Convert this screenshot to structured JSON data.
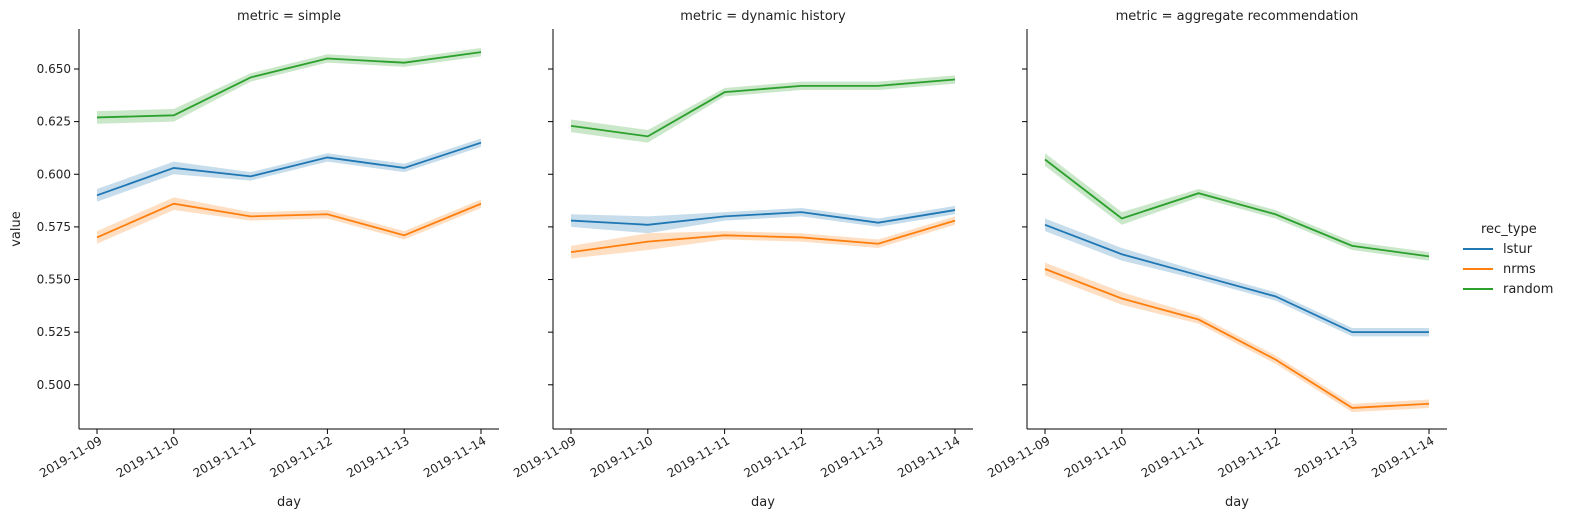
{
  "chart_data": {
    "type": "line",
    "x": [
      "2019-11-09",
      "2019-11-10",
      "2019-11-11",
      "2019-11-12",
      "2019-11-13",
      "2019-11-14"
    ],
    "xlabel": "day",
    "ylabel": "value",
    "ylim": [
      0.479,
      0.669
    ],
    "yticks": [
      "0.500",
      "0.525",
      "0.550",
      "0.575",
      "0.600",
      "0.625",
      "0.650"
    ],
    "legend": {
      "title": "rec_type",
      "placement": "right"
    },
    "colors": {
      "lstur": "#1f77b4",
      "nrms": "#ff7f0e",
      "random": "#2ca02c"
    },
    "panels": [
      {
        "title": "metric = simple",
        "series": [
          {
            "name": "lstur",
            "values": [
              0.59,
              0.603,
              0.599,
              0.608,
              0.603,
              0.615
            ],
            "ci": [
              0.003,
              0.003,
              0.002,
              0.002,
              0.002,
              0.002
            ]
          },
          {
            "name": "nrms",
            "values": [
              0.57,
              0.586,
              0.58,
              0.581,
              0.571,
              0.586
            ],
            "ci": [
              0.003,
              0.003,
              0.002,
              0.002,
              0.002,
              0.002
            ]
          },
          {
            "name": "random",
            "values": [
              0.627,
              0.628,
              0.646,
              0.655,
              0.653,
              0.658
            ],
            "ci": [
              0.003,
              0.003,
              0.002,
              0.002,
              0.002,
              0.002
            ]
          }
        ]
      },
      {
        "title": "metric = dynamic history",
        "series": [
          {
            "name": "lstur",
            "values": [
              0.578,
              0.576,
              0.58,
              0.582,
              0.577,
              0.583
            ],
            "ci": [
              0.003,
              0.004,
              0.002,
              0.002,
              0.002,
              0.002
            ]
          },
          {
            "name": "nrms",
            "values": [
              0.563,
              0.568,
              0.571,
              0.57,
              0.567,
              0.578
            ],
            "ci": [
              0.003,
              0.004,
              0.002,
              0.002,
              0.002,
              0.002
            ]
          },
          {
            "name": "random",
            "values": [
              0.623,
              0.618,
              0.639,
              0.642,
              0.642,
              0.645
            ],
            "ci": [
              0.003,
              0.003,
              0.002,
              0.002,
              0.002,
              0.002
            ]
          }
        ]
      },
      {
        "title": "metric = aggregate recommendation",
        "series": [
          {
            "name": "lstur",
            "values": [
              0.576,
              0.562,
              0.552,
              0.542,
              0.525,
              0.525
            ],
            "ci": [
              0.003,
              0.003,
              0.002,
              0.002,
              0.002,
              0.002
            ]
          },
          {
            "name": "nrms",
            "values": [
              0.555,
              0.541,
              0.531,
              0.512,
              0.489,
              0.491
            ],
            "ci": [
              0.003,
              0.003,
              0.002,
              0.002,
              0.002,
              0.002
            ]
          },
          {
            "name": "random",
            "values": [
              0.607,
              0.579,
              0.591,
              0.581,
              0.566,
              0.561
            ],
            "ci": [
              0.003,
              0.003,
              0.002,
              0.002,
              0.002,
              0.002
            ]
          }
        ]
      }
    ]
  }
}
